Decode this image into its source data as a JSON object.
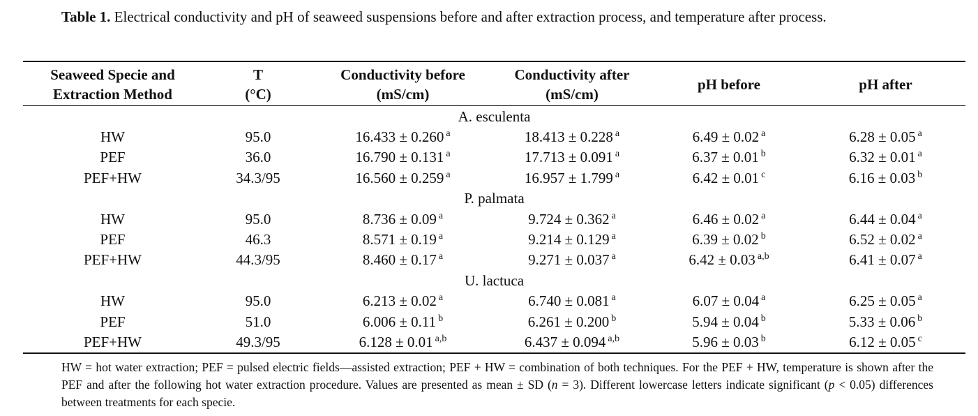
{
  "caption": {
    "label": "Table 1.",
    "text": " Electrical conductivity and pH of seaweed suspensions before and after extraction process, and temperature after process."
  },
  "headers": [
    [
      "Seaweed Specie and",
      "Extraction Method"
    ],
    [
      "T",
      "(°C)"
    ],
    [
      "Conductivity before",
      "(mS/cm)"
    ],
    [
      "Conductivity after",
      "(mS/cm)"
    ],
    [
      "pH before"
    ],
    [
      "pH after"
    ]
  ],
  "groups": [
    {
      "name": "A. esculenta",
      "rows": [
        {
          "method": "HW",
          "t": "95.0",
          "cells": [
            [
              "16.433 ± 0.260",
              "a"
            ],
            [
              "18.413 ± 0.228",
              "a"
            ],
            [
              "6.49 ± 0.02",
              "a"
            ],
            [
              "6.28 ± 0.05",
              "a"
            ]
          ]
        },
        {
          "method": "PEF",
          "t": "36.0",
          "cells": [
            [
              "16.790 ± 0.131",
              "a"
            ],
            [
              "17.713 ± 0.091",
              "a"
            ],
            [
              "6.37 ± 0.01",
              "b"
            ],
            [
              "6.32 ± 0.01",
              "a"
            ]
          ]
        },
        {
          "method": "PEF+HW",
          "t": "34.3/95",
          "cells": [
            [
              "16.560 ± 0.259",
              "a"
            ],
            [
              "16.957 ± 1.799",
              "a"
            ],
            [
              "6.42 ± 0.01",
              "c"
            ],
            [
              "6.16 ± 0.03",
              "b"
            ]
          ]
        }
      ]
    },
    {
      "name": "P. palmata",
      "rows": [
        {
          "method": "HW",
          "t": "95.0",
          "cells": [
            [
              "8.736 ± 0.09",
              "a"
            ],
            [
              "9.724 ± 0.362",
              "a"
            ],
            [
              "6.46 ± 0.02",
              "a"
            ],
            [
              "6.44 ± 0.04",
              "a"
            ]
          ]
        },
        {
          "method": "PEF",
          "t": "46.3",
          "cells": [
            [
              "8.571 ± 0.19",
              "a"
            ],
            [
              "9.214 ± 0.129",
              "a"
            ],
            [
              "6.39 ± 0.02",
              "b"
            ],
            [
              "6.52 ± 0.02",
              "a"
            ]
          ]
        },
        {
          "method": "PEF+HW",
          "t": "44.3/95",
          "cells": [
            [
              "8.460 ± 0.17",
              "a"
            ],
            [
              "9.271 ± 0.037",
              "a"
            ],
            [
              "6.42 ± 0.03",
              "a,b"
            ],
            [
              "6.41 ± 0.07",
              "a"
            ]
          ]
        }
      ]
    },
    {
      "name": "U. lactuca",
      "rows": [
        {
          "method": "HW",
          "t": "95.0",
          "cells": [
            [
              "6.213 ± 0.02",
              "a"
            ],
            [
              "6.740 ± 0.081",
              "a"
            ],
            [
              "6.07 ± 0.04",
              "a"
            ],
            [
              "6.25 ± 0.05",
              "a"
            ]
          ]
        },
        {
          "method": "PEF",
          "t": "51.0",
          "cells": [
            [
              "6.006 ± 0.11",
              "b"
            ],
            [
              "6.261 ± 0.200",
              "b"
            ],
            [
              "5.94 ± 0.04",
              "b"
            ],
            [
              "5.33 ± 0.06",
              "b"
            ]
          ]
        },
        {
          "method": "PEF+HW",
          "t": "49.3/95",
          "cells": [
            [
              "6.128 ± 0.01",
              "a,b"
            ],
            [
              "6.437 ± 0.094",
              "a,b"
            ],
            [
              "5.96 ± 0.03",
              "b"
            ],
            [
              "6.12 ± 0.05",
              "c"
            ]
          ]
        }
      ]
    }
  ],
  "footnote": {
    "part1": "HW = hot water extraction; PEF = pulsed electric fields—assisted extraction; PEF + HW = combination of both techniques. For the PEF + HW, temperature is shown after the PEF and after the following hot water extraction procedure. Values are presented as mean ± SD (",
    "n": "n",
    "part2": " = 3). Different lowercase letters indicate significant (",
    "p": "p",
    "part3": " < 0.05) differences between treatments for each specie."
  }
}
